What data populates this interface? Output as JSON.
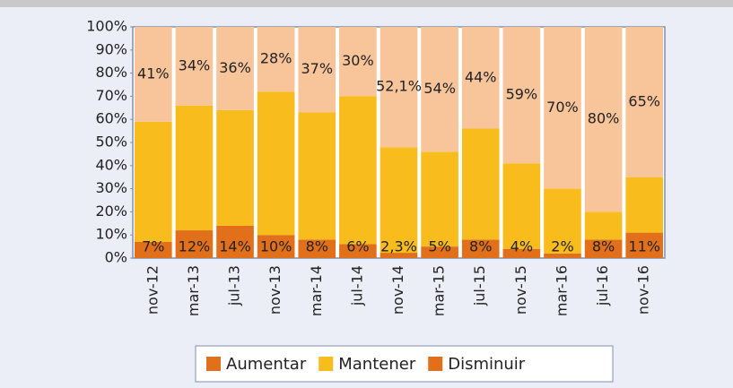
{
  "chart_data": {
    "type": "stacked_bar",
    "categories": [
      "nov-12",
      "mar-13",
      "jul-13",
      "nov-13",
      "mar-14",
      "jul-14",
      "nov-14",
      "mar-15",
      "jul-15",
      "nov-15",
      "mar-16",
      "jul-16",
      "nov-16"
    ],
    "series": [
      {
        "name": "Aumentar",
        "color": "#e2701a",
        "legend_color": "#e2701a",
        "values": [
          7,
          12,
          14,
          10,
          8,
          6,
          2.3,
          5,
          8,
          4,
          2,
          8,
          11
        ],
        "value_labels": [
          "7%",
          "12%",
          "14%",
          "10%",
          "8%",
          "6%",
          "2,3%",
          "5%",
          "8%",
          "4%",
          "2%",
          "8%",
          "11%"
        ]
      },
      {
        "name": "Mantener",
        "color": "#f8bd1c",
        "legend_color": "#f8bd1c",
        "values": [
          52,
          54,
          50,
          62,
          55,
          64,
          45.6,
          41,
          48,
          37,
          28,
          12,
          24
        ]
      },
      {
        "name": "Disminuir",
        "color": "#f8c49a",
        "legend_color": "#e2701a",
        "values": [
          41,
          34,
          36,
          28,
          37,
          30,
          52.1,
          54,
          44,
          59,
          70,
          80,
          65
        ],
        "value_labels": [
          "41%",
          "34%",
          "36%",
          "28%",
          "37%",
          "30%",
          "52,1%",
          "54%",
          "44%",
          "59%",
          "70%",
          "80%",
          "65%"
        ]
      }
    ],
    "ylim": [
      0,
      100
    ],
    "yticks": [
      {
        "value": 0,
        "label": "0%"
      },
      {
        "value": 10,
        "label": "10%"
      },
      {
        "value": 20,
        "label": "20%"
      },
      {
        "value": 30,
        "label": "30%"
      },
      {
        "value": 40,
        "label": "40%"
      },
      {
        "value": 50,
        "label": "50%"
      },
      {
        "value": 60,
        "label": "60%"
      },
      {
        "value": 70,
        "label": "70%"
      },
      {
        "value": 80,
        "label": "80%"
      },
      {
        "value": 90,
        "label": "90%"
      },
      {
        "value": 100,
        "label": "100%"
      }
    ],
    "legend": "bottom"
  }
}
